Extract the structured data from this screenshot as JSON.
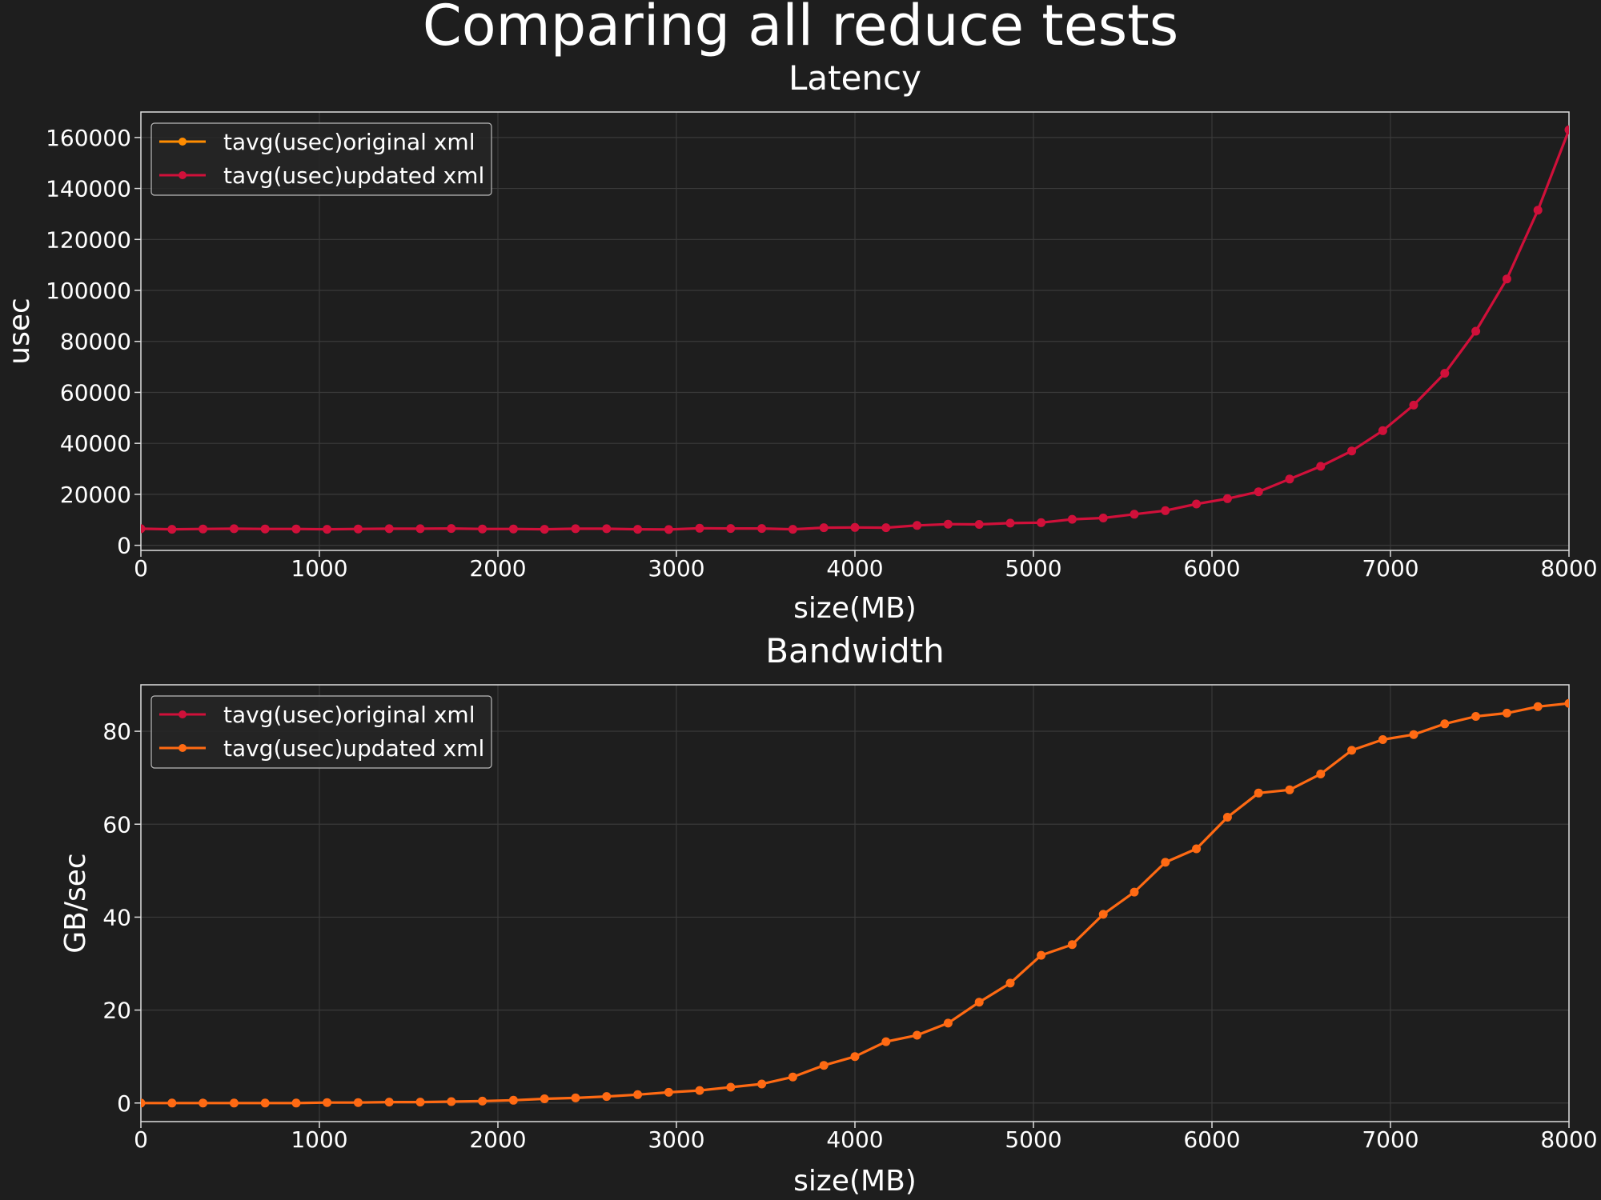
{
  "suptitle": "Comparing all reduce tests",
  "colors": {
    "background": "#1e1e1e",
    "grid": "#3a3a3a",
    "axes_edge": "#dddddd",
    "series_red": "#d0103a",
    "series_orange": "#ff6a13",
    "legend_orange": "#ff8c00"
  },
  "chart_data": [
    {
      "type": "line",
      "title": "Latency",
      "xlabel": "size(MB)",
      "ylabel": "usec",
      "xlim": [
        0,
        8000
      ],
      "ylim": [
        -2000,
        170000
      ],
      "xticks": [
        0,
        1000,
        2000,
        3000,
        4000,
        5000,
        6000,
        7000,
        8000
      ],
      "yticks": [
        0,
        20000,
        40000,
        60000,
        80000,
        100000,
        120000,
        140000,
        160000
      ],
      "grid": true,
      "legend_position": "upper-left",
      "legend": [
        {
          "label": "tavg(usec)original xml",
          "color": "#ff8c00"
        },
        {
          "label": "tavg(usec)updated xml",
          "color": "#d0103a"
        }
      ],
      "series": [
        {
          "name": "tavg(usec)updated xml",
          "color": "#d0103a",
          "x": [
            0,
            174,
            348,
            522,
            696,
            870,
            1043,
            1217,
            1391,
            1565,
            1739,
            1913,
            2087,
            2261,
            2435,
            2609,
            2783,
            2957,
            3130,
            3304,
            3478,
            3652,
            3826,
            4000,
            4174,
            4348,
            4522,
            4696,
            4870,
            5043,
            5217,
            5391,
            5565,
            5739,
            5913,
            6087,
            6261,
            6435,
            6609,
            6783,
            6957,
            7130,
            7304,
            7478,
            7652,
            7826,
            8000
          ],
          "y": [
            6500,
            6300,
            6400,
            6500,
            6400,
            6400,
            6300,
            6400,
            6500,
            6500,
            6600,
            6400,
            6400,
            6300,
            6500,
            6500,
            6300,
            6200,
            6700,
            6600,
            6600,
            6300,
            6900,
            7000,
            6900,
            7800,
            8300,
            8200,
            8700,
            8900,
            10200,
            10700,
            12200,
            13600,
            16200,
            18300,
            21000,
            26000,
            31000,
            37000,
            45000,
            55000,
            67500,
            84000,
            104500,
            131500,
            163000
          ]
        }
      ]
    },
    {
      "type": "line",
      "title": "Bandwidth",
      "xlabel": "size(MB)",
      "ylabel": "GB/sec",
      "xlim": [
        0,
        8000
      ],
      "ylim": [
        -4,
        90
      ],
      "xticks": [
        0,
        1000,
        2000,
        3000,
        4000,
        5000,
        6000,
        7000,
        8000
      ],
      "yticks": [
        0,
        20,
        40,
        60,
        80
      ],
      "grid": true,
      "legend_position": "upper-left",
      "legend": [
        {
          "label": "tavg(usec)original xml",
          "color": "#d0103a"
        },
        {
          "label": "tavg(usec)updated xml",
          "color": "#ff6a13"
        }
      ],
      "series": [
        {
          "name": "tavg(usec)updated xml",
          "color": "#ff6a13",
          "x": [
            0,
            174,
            348,
            522,
            696,
            870,
            1043,
            1217,
            1391,
            1565,
            1739,
            1913,
            2087,
            2261,
            2435,
            2609,
            2783,
            2957,
            3130,
            3304,
            3478,
            3652,
            3826,
            4000,
            4174,
            4348,
            4522,
            4696,
            4870,
            5043,
            5217,
            5391,
            5565,
            5739,
            5913,
            6087,
            6261,
            6435,
            6609,
            6783,
            6957,
            7130,
            7304,
            7478,
            7652,
            7826,
            8000
          ],
          "y": [
            0.0,
            0.0,
            0.0,
            0.0,
            0.0,
            0.0,
            0.1,
            0.1,
            0.2,
            0.2,
            0.3,
            0.4,
            0.6,
            0.9,
            1.1,
            1.4,
            1.8,
            2.3,
            2.7,
            3.4,
            4.1,
            5.6,
            8.1,
            10.0,
            13.2,
            14.6,
            17.2,
            21.7,
            25.8,
            31.8,
            34.1,
            40.6,
            45.4,
            51.8,
            54.7,
            61.5,
            66.7,
            67.4,
            70.8,
            75.9,
            78.2,
            79.3,
            81.6,
            83.2,
            83.9,
            85.3,
            86.0
          ]
        }
      ]
    }
  ]
}
